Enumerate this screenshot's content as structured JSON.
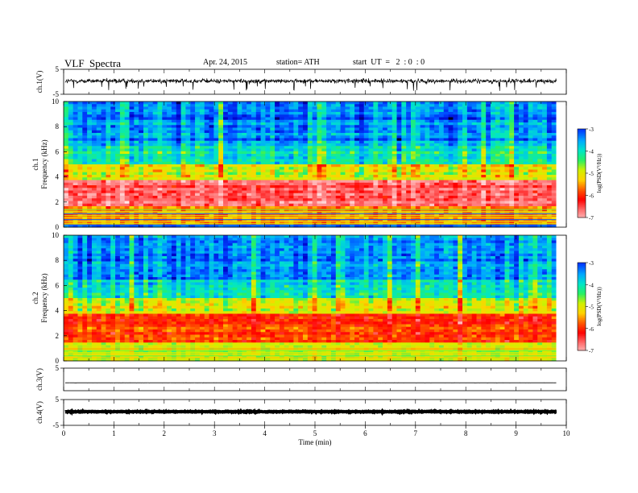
{
  "header": {
    "title": "VLF  Spectra",
    "date": "Apr. 24, 2015",
    "station": "station= ATH",
    "start": "start  UT  =   2  : 0  : 0"
  },
  "chart_data": [
    {
      "type": "line",
      "panel": "ch1-waveform",
      "ylabel": "ch.1(V)",
      "ylim": [
        -5,
        5
      ],
      "yticks": [
        5,
        -5
      ],
      "xlim": [
        0,
        10
      ],
      "data_end_min": 9.8,
      "baseline": 0.3,
      "noise_amplitude": 1.5
    },
    {
      "type": "heatmap",
      "panel": "ch1-spectrogram",
      "ylabel_channel": "ch.1",
      "ylabel": "Frequency (kHz)",
      "ylim": [
        0,
        10
      ],
      "yticks": [
        "0",
        "2",
        "4",
        "6",
        "8",
        "10"
      ],
      "xlim": [
        0,
        10
      ],
      "data_end_min": 9.8,
      "colorbar": {
        "label": "log(PSD(V²/Hz))",
        "range": [
          -7,
          -3
        ],
        "ticks": [
          "-3",
          "-4",
          "-5",
          "-6",
          "-7"
        ]
      },
      "bands": [
        {
          "from_khz": 0,
          "to_khz": 0.2,
          "log_psd": -3.2
        },
        {
          "from_khz": 0.2,
          "to_khz": 1.6,
          "log_psd": -5.5
        },
        {
          "from_khz": 1.6,
          "to_khz": 3.8,
          "log_psd": -6.6
        },
        {
          "from_khz": 3.8,
          "to_khz": 5.0,
          "log_psd": -5.0
        },
        {
          "from_khz": 5.0,
          "to_khz": 6.5,
          "log_psd": -4.0
        },
        {
          "from_khz": 6.5,
          "to_khz": 10,
          "log_psd": -3.4
        }
      ]
    },
    {
      "type": "heatmap",
      "panel": "ch2-spectrogram",
      "ylabel_channel": "ch.2",
      "ylabel": "Frequency (kHz)",
      "ylim": [
        0,
        10
      ],
      "yticks": [
        "0",
        "2",
        "4",
        "6",
        "8",
        "10"
      ],
      "xlim": [
        0,
        10
      ],
      "data_end_min": 9.8,
      "colorbar": {
        "label": "log(PSD(V²/Hz))",
        "range": [
          -7,
          -3
        ],
        "ticks": [
          "-3",
          "-4",
          "-5",
          "-6",
          "-7"
        ]
      },
      "bands": [
        {
          "from_khz": 0,
          "to_khz": 1.4,
          "log_psd": -4.8
        },
        {
          "from_khz": 1.4,
          "to_khz": 3.8,
          "log_psd": -5.9
        },
        {
          "from_khz": 3.8,
          "to_khz": 5.0,
          "log_psd": -5.0
        },
        {
          "from_khz": 5.0,
          "to_khz": 6.5,
          "log_psd": -4.0
        },
        {
          "from_khz": 6.5,
          "to_khz": 10,
          "log_psd": -3.4
        }
      ]
    },
    {
      "type": "line",
      "panel": "ch3-waveform",
      "ylabel": "ch.3(V)",
      "ylim": [
        -5,
        5
      ],
      "yticks": [
        5
      ],
      "xlim": [
        0,
        10
      ],
      "data_end_min": 9.8,
      "baseline": -1.5,
      "noise_amplitude": 0.05
    },
    {
      "type": "line",
      "panel": "ch4-waveform",
      "ylabel": "ch.4(V)",
      "ylim": [
        -5,
        5
      ],
      "yticks": [
        5,
        -5
      ],
      "xlim": [
        0,
        10
      ],
      "data_end_min": 9.8,
      "baseline": 0.3,
      "noise_amplitude": 0.25,
      "xlabel": "Time  (min)",
      "xticks": [
        "0",
        "1",
        "2",
        "3",
        "4",
        "5",
        "6",
        "7",
        "8",
        "9",
        "10"
      ]
    }
  ],
  "colors": {
    "colormap": [
      "#000000",
      "#0000c8",
      "#0040ff",
      "#00a8ff",
      "#00e6c8",
      "#28f064",
      "#d2f000",
      "#ffd200",
      "#ff5a00",
      "#ff0000",
      "#ff6a6a",
      "#ffbfbf",
      "#ffffff"
    ]
  }
}
